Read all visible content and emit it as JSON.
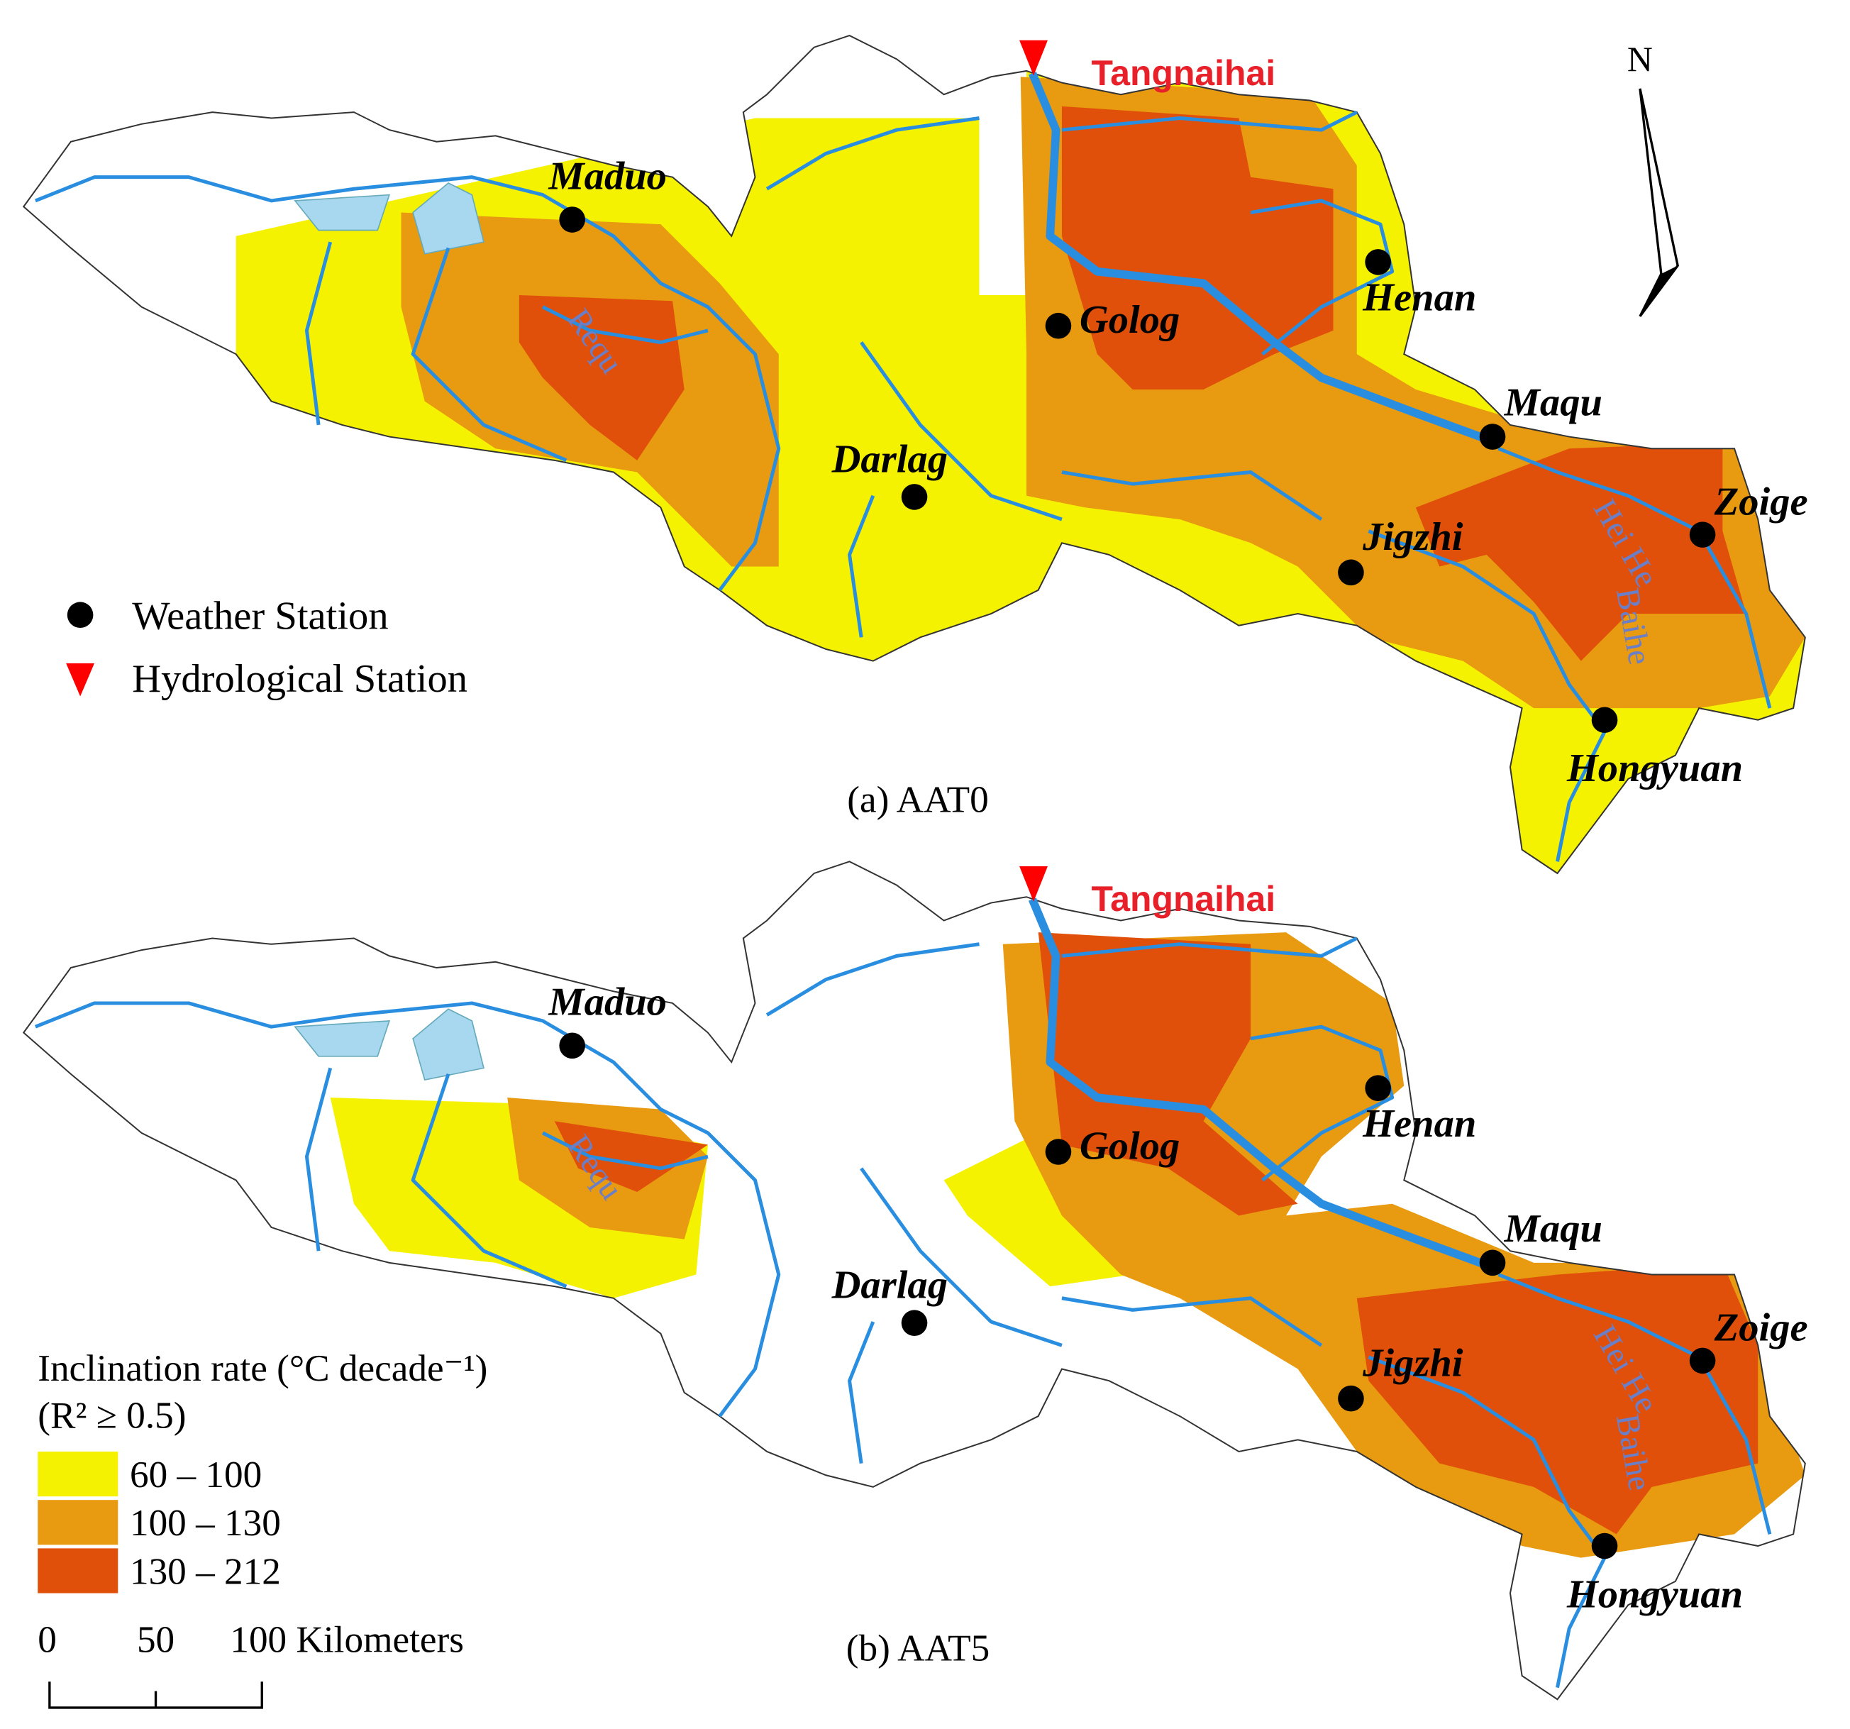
{
  "panels": [
    {
      "caption": "(a) AAT0"
    },
    {
      "caption": "(b) AAT5"
    }
  ],
  "hydrological_station": "Tangnaihai",
  "weather_stations": [
    "Maduo",
    "Henan",
    "Golog",
    "Maqu",
    "Darlag",
    "Zoige",
    "Jigzhi",
    "Hongyuan"
  ],
  "rivers": [
    "Requ",
    "Hei He",
    "Baihe"
  ],
  "north": "N",
  "legend": {
    "weather_station": "Weather Station",
    "hydrological_station": "Hydrological Station",
    "title": "Inclination rate (°C decade⁻¹)",
    "subtitle": "(R² ≥ 0.5)",
    "classes": [
      {
        "label": "60 – 100",
        "color": "#f5f200"
      },
      {
        "label": "100 – 130",
        "color": "#e89a10"
      },
      {
        "label": "130 – 212",
        "color": "#e0500a"
      }
    ]
  },
  "scale_bar": [
    "0",
    "50",
    "100 Kilometers"
  ]
}
